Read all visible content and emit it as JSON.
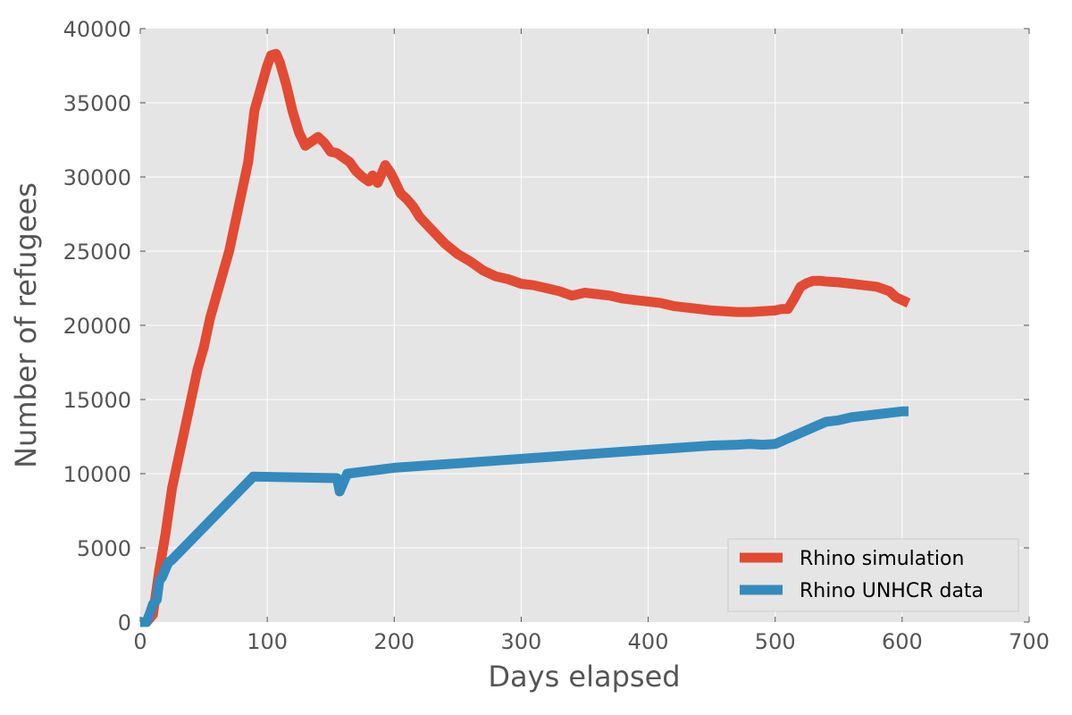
{
  "chart_data": {
    "type": "line",
    "title": "",
    "xlabel": "Days elapsed",
    "ylabel": "Number of refugees",
    "xlim": [
      0,
      700
    ],
    "ylim": [
      0,
      40000
    ],
    "xticks": [
      "0",
      "100",
      "200",
      "300",
      "400",
      "500",
      "600",
      "700"
    ],
    "yticks": [
      "0",
      "5000",
      "10000",
      "15000",
      "20000",
      "25000",
      "30000",
      "35000",
      "40000"
    ],
    "grid": true,
    "legend_position": "lower-right",
    "background_color": "#e5e5e5",
    "series": [
      {
        "name": "Rhino simulation",
        "color": "#e24a33",
        "x": [
          0,
          5,
          10,
          15,
          20,
          25,
          30,
          35,
          40,
          45,
          50,
          55,
          60,
          65,
          70,
          75,
          80,
          85,
          90,
          95,
          100,
          103,
          107,
          110,
          115,
          120,
          125,
          130,
          135,
          140,
          145,
          150,
          155,
          160,
          165,
          170,
          175,
          180,
          183,
          187,
          190,
          193,
          197,
          200,
          205,
          210,
          215,
          220,
          230,
          240,
          250,
          260,
          270,
          280,
          290,
          300,
          310,
          320,
          330,
          340,
          350,
          360,
          370,
          380,
          390,
          400,
          410,
          420,
          430,
          440,
          450,
          460,
          470,
          480,
          490,
          500,
          505,
          510,
          515,
          520,
          525,
          530,
          535,
          540,
          550,
          560,
          570,
          580,
          590,
          595,
          605
        ],
        "y": [
          0,
          0,
          500,
          3500,
          6000,
          9000,
          11000,
          13000,
          15000,
          17000,
          18500,
          20500,
          22000,
          23500,
          25000,
          27000,
          29000,
          31000,
          34500,
          36000,
          37500,
          38200,
          38300,
          37700,
          36200,
          34400,
          33000,
          32100,
          32400,
          32700,
          32300,
          31700,
          31600,
          31300,
          31000,
          30400,
          30000,
          29700,
          30100,
          29600,
          30200,
          30800,
          30300,
          29800,
          28900,
          28500,
          28000,
          27300,
          26400,
          25500,
          24800,
          24300,
          23700,
          23300,
          23100,
          22800,
          22700,
          22500,
          22300,
          22000,
          22200,
          22100,
          22000,
          21800,
          21700,
          21600,
          21500,
          21300,
          21200,
          21100,
          21000,
          20950,
          20900,
          20900,
          20950,
          21000,
          21100,
          21100,
          21800,
          22600,
          22850,
          23000,
          23000,
          22950,
          22900,
          22800,
          22700,
          22600,
          22300,
          21900,
          21500
        ]
      },
      {
        "name": "Rhino UNHCR data",
        "color": "#348abd",
        "x": [
          0,
          5,
          8,
          10,
          13,
          15,
          17,
          20,
          22,
          25,
          89,
          155,
          157,
          160,
          163,
          200,
          300,
          400,
          450,
          470,
          480,
          490,
          500,
          540,
          550,
          560,
          580,
          600,
          605
        ],
        "y": [
          0,
          0,
          700,
          1200,
          1500,
          2800,
          3000,
          3600,
          4000,
          4200,
          9800,
          9700,
          8800,
          9400,
          10000,
          10400,
          11000,
          11600,
          11900,
          11950,
          12000,
          11950,
          12000,
          13500,
          13600,
          13800,
          14000,
          14200,
          14200
        ]
      }
    ]
  }
}
